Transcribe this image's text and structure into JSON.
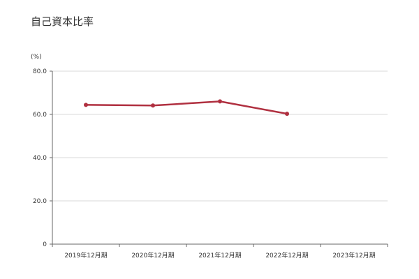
{
  "chart_data": {
    "type": "line",
    "title": "自己資本比率",
    "ylabel": "(%)",
    "xlabel": "",
    "categories": [
      "2019年12月期",
      "2020年12月期",
      "2021年12月期",
      "2022年12月期",
      "2023年12月期"
    ],
    "series": [
      {
        "values": [
          64.4,
          64.1,
          66.0,
          60.3,
          null
        ],
        "color": "#b03040"
      }
    ],
    "y_ticks": [
      "0",
      "20.0",
      "40.0",
      "60.0",
      "80.0"
    ],
    "ylim": [
      0,
      80
    ],
    "grid": true,
    "legend": "none"
  },
  "colors": {
    "series": "#b03040",
    "grid": "#d9d9d9",
    "axis": "#666666"
  }
}
